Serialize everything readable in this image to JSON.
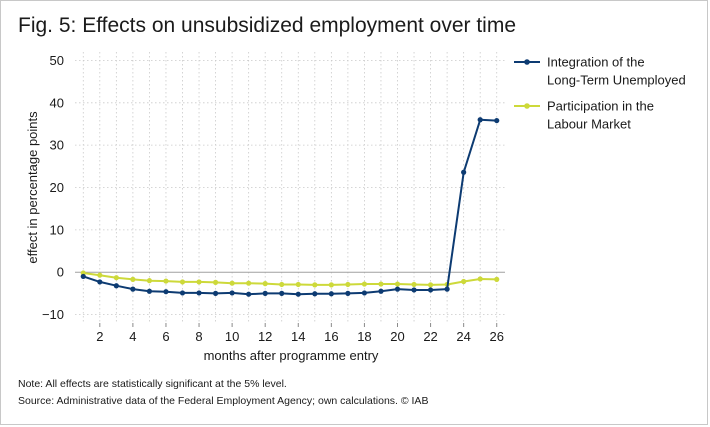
{
  "figure": {
    "title": "Fig. 5: Effects on unsubsidized employment over time",
    "note": "Note: All effects are statistically significant at the 5% level.",
    "source": "Source: Administrative data of the Federal Employment Agency; own calculations.  © IAB"
  },
  "chart_data": {
    "type": "line",
    "title": "Fig. 5: Effects on unsubsidized employment over time",
    "xlabel": "months after programme entry",
    "ylabel": "effect in percentage points",
    "xlim": [
      0.5,
      26.5
    ],
    "ylim": [
      -12,
      52
    ],
    "xticks": [
      2,
      4,
      6,
      8,
      10,
      12,
      14,
      16,
      18,
      20,
      22,
      24,
      26
    ],
    "yticks": [
      -10,
      0,
      10,
      20,
      30,
      40,
      50
    ],
    "ytick_labels": [
      "−10",
      "0",
      "10",
      "20",
      "30",
      "40",
      "50"
    ],
    "grid": true,
    "legend_position": "right",
    "x": [
      1,
      2,
      3,
      4,
      5,
      6,
      7,
      8,
      9,
      10,
      11,
      12,
      13,
      14,
      15,
      16,
      17,
      18,
      19,
      20,
      21,
      22,
      23,
      24,
      25,
      26
    ],
    "series": [
      {
        "name": "Integration of the Long-Term Unemployed",
        "name_lines": [
          "Integration of the",
          "Long-Term Unemployed"
        ],
        "color": "#0d3b72",
        "values": [
          -1.0,
          -2.3,
          -3.2,
          -4.0,
          -4.5,
          -4.6,
          -4.9,
          -4.9,
          -5.0,
          -4.9,
          -5.2,
          -5.0,
          -5.0,
          -5.2,
          -5.1,
          -5.1,
          -5.0,
          -4.9,
          -4.5,
          -4.0,
          -4.2,
          -4.2,
          -4.0,
          23.6,
          36.0,
          35.8
        ]
      },
      {
        "name": "Participation in the Labour Market",
        "name_lines": [
          "Participation in the",
          "Labour Market"
        ],
        "color": "#cdd93a",
        "values": [
          -0.2,
          -0.7,
          -1.3,
          -1.7,
          -2.0,
          -2.1,
          -2.3,
          -2.3,
          -2.4,
          -2.6,
          -2.6,
          -2.7,
          -2.9,
          -2.9,
          -3.0,
          -3.0,
          -2.9,
          -2.8,
          -2.8,
          -2.8,
          -2.9,
          -3.0,
          -2.9,
          -2.2,
          -1.6,
          -1.7
        ]
      }
    ],
    "colors": {
      "grid": "#c9c9c9",
      "zero_line": "#a0a0a0",
      "axis": "#8a8a8a"
    }
  }
}
